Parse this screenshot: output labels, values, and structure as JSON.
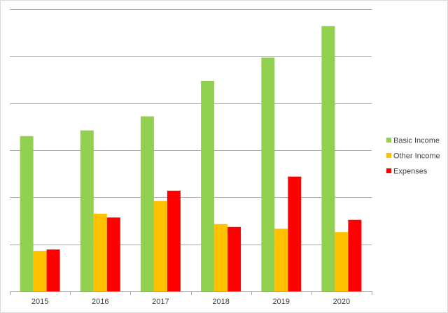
{
  "chart_data": {
    "type": "bar",
    "title": "",
    "xlabel": "",
    "ylabel": "",
    "categories": [
      "2015",
      "2016",
      "2017",
      "2018",
      "2019",
      "2020"
    ],
    "series": [
      {
        "name": "Basic Income",
        "color": "#92d050",
        "values": [
          33.0,
          34.2,
          37.2,
          44.7,
          49.7,
          56.4
        ]
      },
      {
        "name": "Other Income",
        "color": "#ffc000",
        "values": [
          8.6,
          16.5,
          19.2,
          14.3,
          13.3,
          12.6
        ]
      },
      {
        "name": "Expenses",
        "color": "#ff0000",
        "values": [
          8.9,
          15.7,
          21.4,
          13.7,
          24.4,
          15.2
        ]
      }
    ],
    "ylim": [
      0,
      60
    ],
    "y_gridlines": [
      0,
      10,
      20,
      30,
      40,
      50,
      60
    ],
    "grid": true,
    "y_tick_labels_visible": false,
    "legend_position": "right"
  }
}
